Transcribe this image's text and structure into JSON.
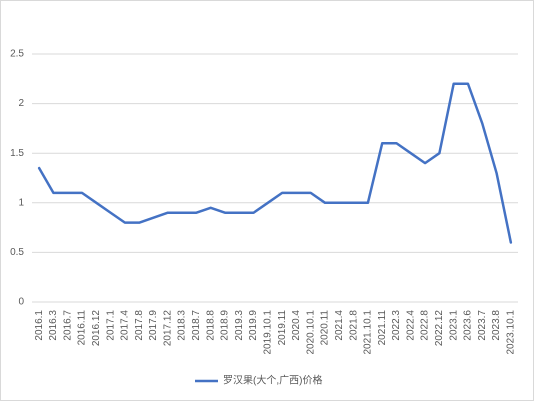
{
  "chart_data": {
    "type": "line",
    "categories": [
      "2016.1",
      "2016.3",
      "2016.7",
      "2016.11",
      "2016.12",
      "2017.1",
      "2017.4",
      "2017.8",
      "2017.9",
      "2017.12",
      "2018.3",
      "2018.7",
      "2018.8",
      "2018.9",
      "2019.3",
      "2019.9",
      "2019.10.1",
      "2019.11",
      "2020.4",
      "2020.10.1",
      "2020.11",
      "2021.4",
      "2021.8",
      "2021.10.1",
      "2021.11",
      "2022.3",
      "2022.4",
      "2022.8",
      "2022.12",
      "2023.1",
      "2023.6",
      "2023.7",
      "2023.8",
      "2023.10.1"
    ],
    "series": [
      {
        "name": "罗汉果(大个,广西)价格",
        "color": "#4472c4",
        "values": [
          1.35,
          1.1,
          1.1,
          1.1,
          1.0,
          0.9,
          0.8,
          0.8,
          0.85,
          0.9,
          0.9,
          0.9,
          0.95,
          0.9,
          0.9,
          0.9,
          1.0,
          1.1,
          1.1,
          1.1,
          1.0,
          1.0,
          1.0,
          1.0,
          1.6,
          1.6,
          1.5,
          1.4,
          1.5,
          2.2,
          2.2,
          1.8,
          1.3,
          0.6
        ]
      }
    ],
    "ylim": [
      0,
      2.5
    ],
    "yticks": [
      0,
      0.5,
      1,
      1.5,
      2,
      2.5
    ],
    "grid": true,
    "legend": "bottom"
  }
}
